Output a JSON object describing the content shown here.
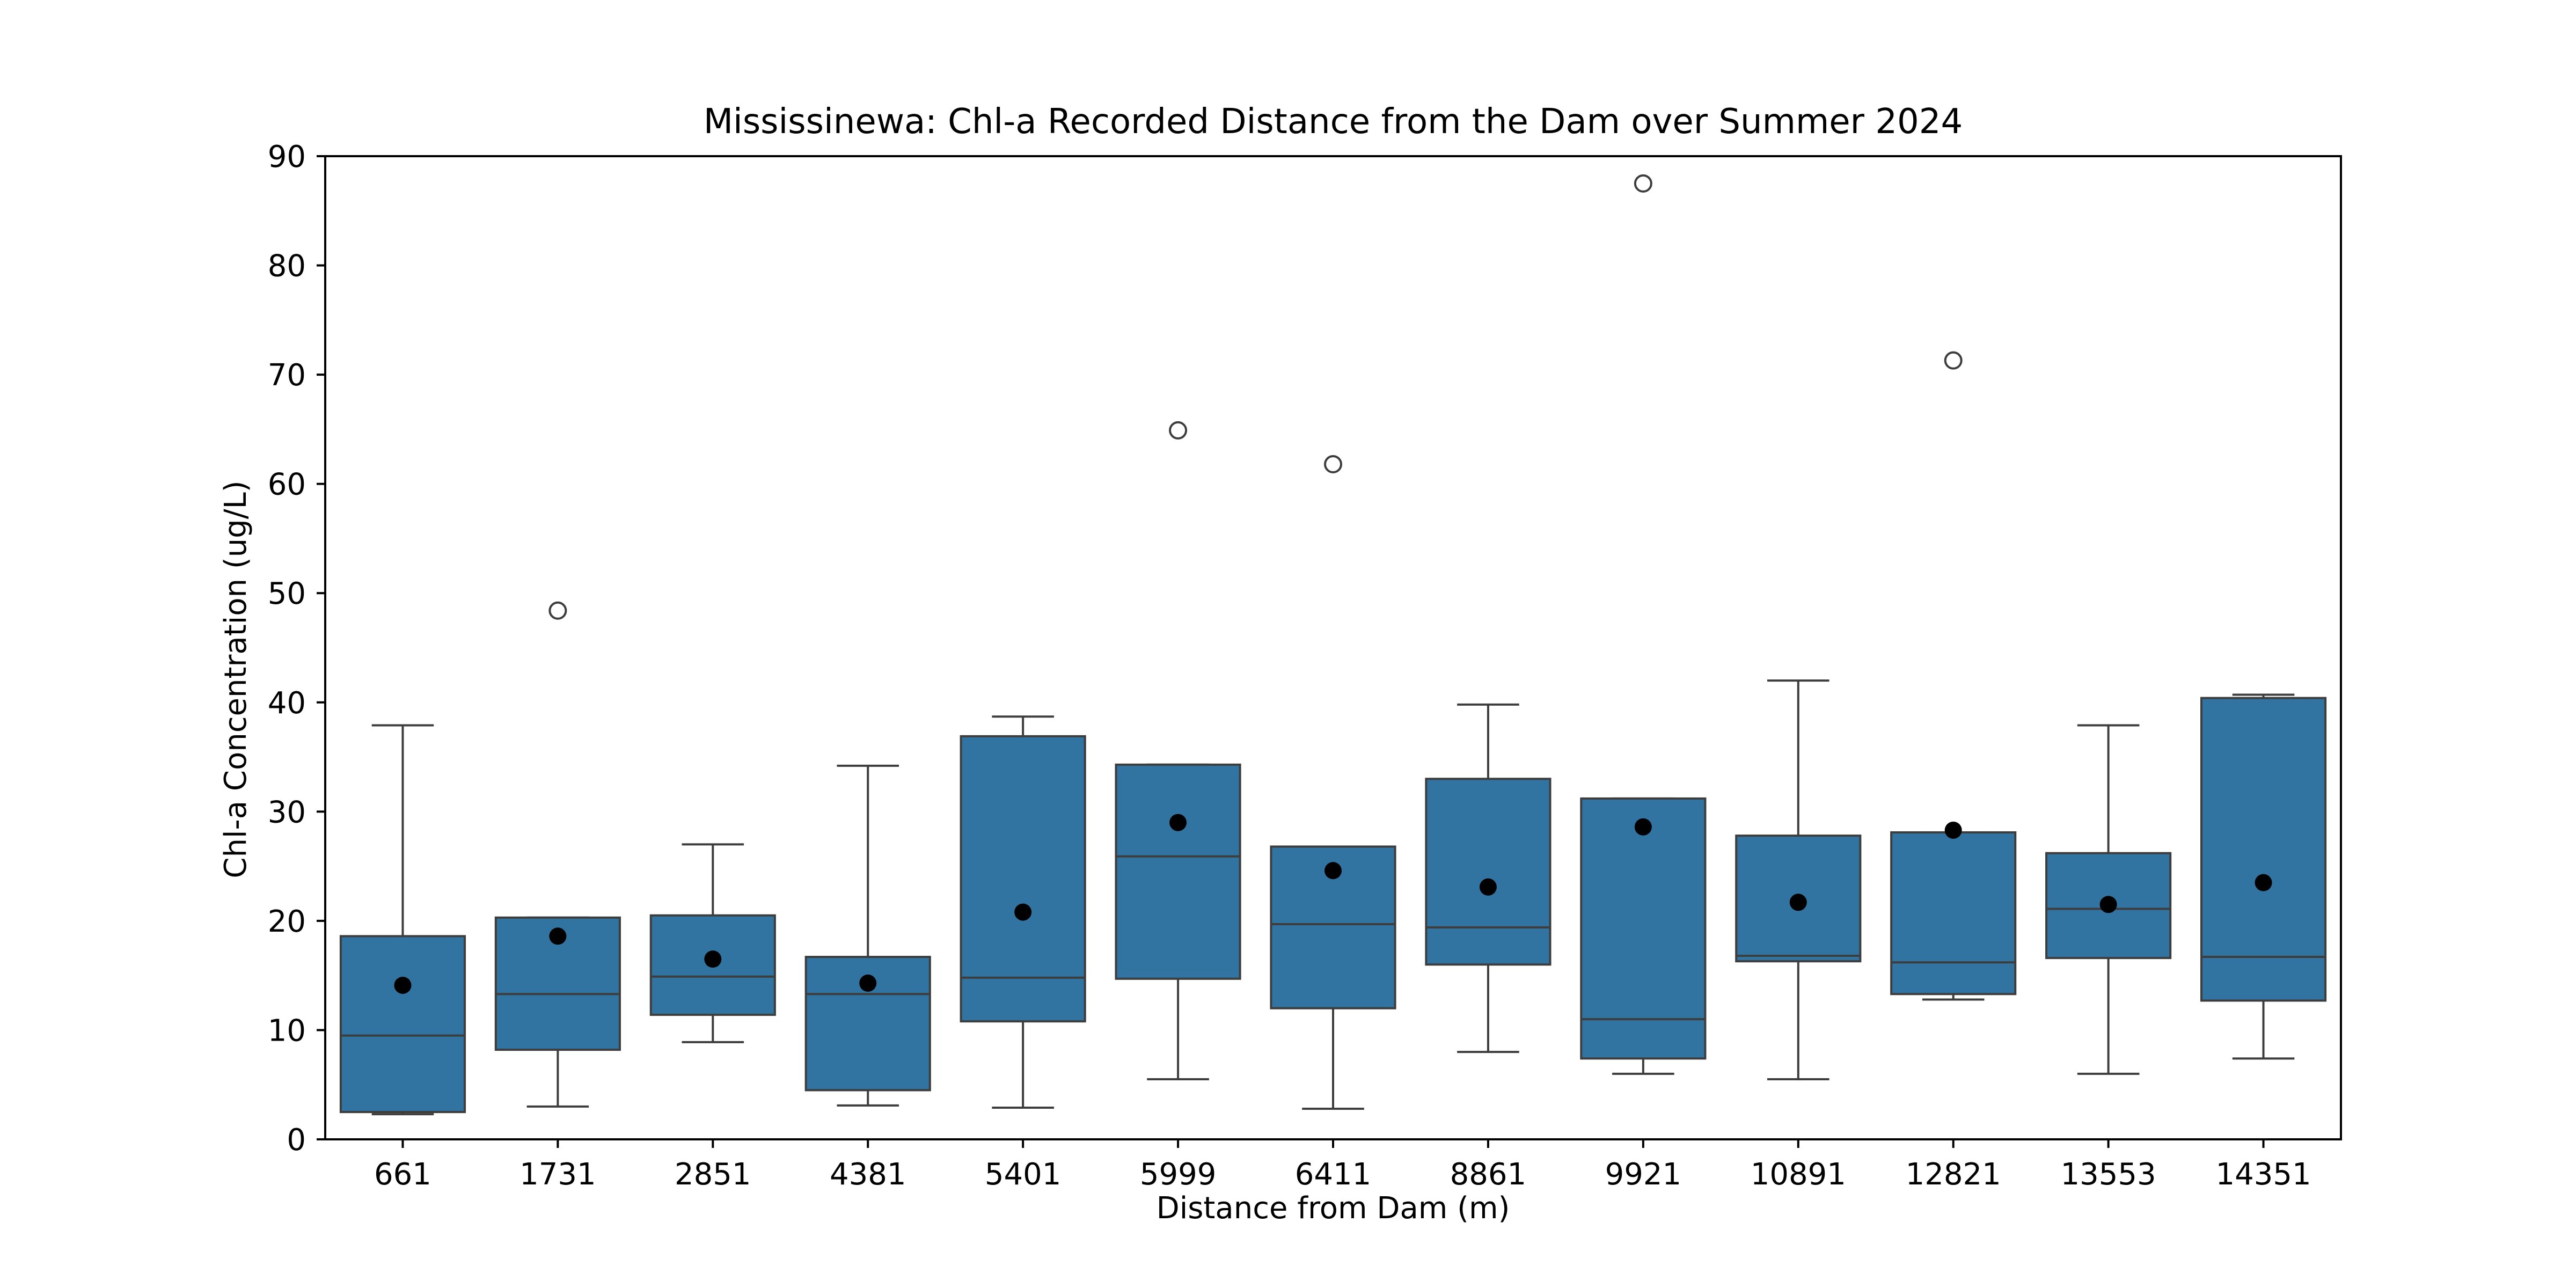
{
  "chart_data": {
    "type": "box",
    "title": "Mississinewa: Chl-a Recorded Distance from the Dam over Summer 2024",
    "xlabel": "Distance from Dam (m)",
    "ylabel": "Chl-a Concentration (ug/L)",
    "ylim": [
      0,
      90
    ],
    "yticks": [
      0,
      10,
      20,
      30,
      40,
      50,
      60,
      70,
      80,
      90
    ],
    "grid": false,
    "legend": "none",
    "colors": {
      "box": "#3274a1",
      "line": "#3d3d3d",
      "mean": "#000000"
    },
    "categories": [
      "661",
      "1731",
      "2851",
      "4381",
      "5401",
      "5999",
      "6411",
      "8861",
      "9921",
      "10891",
      "12821",
      "13553",
      "14351"
    ],
    "boxes": [
      {
        "whisker_low": 2.3,
        "q1": 2.5,
        "median": 9.5,
        "q3": 18.6,
        "whisker_high": 37.9,
        "mean": 14.1,
        "outliers": []
      },
      {
        "whisker_low": 3.0,
        "q1": 8.2,
        "median": 13.3,
        "q3": 20.3,
        "whisker_high": 20.3,
        "mean": 18.6,
        "outliers": [
          48.4
        ]
      },
      {
        "whisker_low": 8.9,
        "q1": 11.4,
        "median": 14.9,
        "q3": 20.5,
        "whisker_high": 27.0,
        "mean": 16.5,
        "outliers": []
      },
      {
        "whisker_low": 3.1,
        "q1": 4.5,
        "median": 13.3,
        "q3": 16.7,
        "whisker_high": 34.2,
        "mean": 14.3,
        "outliers": []
      },
      {
        "whisker_low": 2.9,
        "q1": 10.8,
        "median": 14.8,
        "q3": 36.9,
        "whisker_high": 38.7,
        "mean": 20.8,
        "outliers": []
      },
      {
        "whisker_low": 5.5,
        "q1": 14.7,
        "median": 25.9,
        "q3": 34.3,
        "whisker_high": 34.3,
        "mean": 29.0,
        "outliers": [
          64.9
        ]
      },
      {
        "whisker_low": 2.8,
        "q1": 12.0,
        "median": 19.7,
        "q3": 26.8,
        "whisker_high": 26.8,
        "mean": 24.6,
        "outliers": [
          61.8
        ]
      },
      {
        "whisker_low": 8.0,
        "q1": 16.0,
        "median": 19.4,
        "q3": 33.0,
        "whisker_high": 39.8,
        "mean": 23.1,
        "outliers": []
      },
      {
        "whisker_low": 6.0,
        "q1": 7.4,
        "median": 11.0,
        "q3": 31.2,
        "whisker_high": 31.2,
        "mean": 28.6,
        "outliers": [
          87.5
        ]
      },
      {
        "whisker_low": 5.5,
        "q1": 16.3,
        "median": 16.8,
        "q3": 27.8,
        "whisker_high": 42.0,
        "mean": 21.7,
        "outliers": []
      },
      {
        "whisker_low": 12.8,
        "q1": 13.3,
        "median": 16.2,
        "q3": 28.1,
        "whisker_high": 28.1,
        "mean": 28.3,
        "outliers": [
          71.3
        ]
      },
      {
        "whisker_low": 6.0,
        "q1": 16.6,
        "median": 21.1,
        "q3": 26.2,
        "whisker_high": 37.9,
        "mean": 21.5,
        "outliers": []
      },
      {
        "whisker_low": 7.4,
        "q1": 12.7,
        "median": 16.7,
        "q3": 40.4,
        "whisker_high": 40.7,
        "mean": 23.5,
        "outliers": []
      }
    ]
  }
}
